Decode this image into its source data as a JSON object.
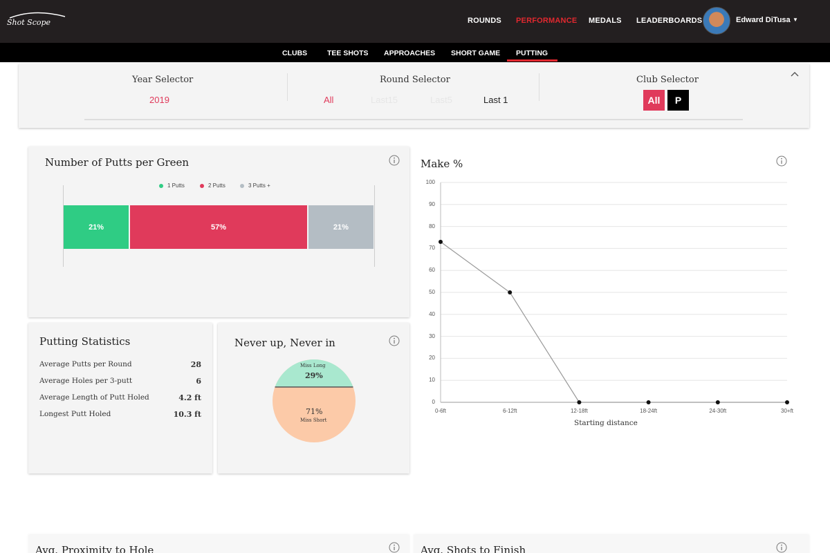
{
  "app": {
    "logo": "Shot Scope"
  },
  "topnav": {
    "items": [
      {
        "label": "ROUNDS",
        "active": false
      },
      {
        "label": "PERFORMANCE",
        "active": true
      },
      {
        "label": "MEDALS",
        "active": false
      },
      {
        "label": "LEADERBOARDS",
        "active": false
      }
    ],
    "user": {
      "name": "Edward DiTusa",
      "caret": "▼"
    }
  },
  "subnav": {
    "items": [
      "CLUBS",
      "TEE SHOTS",
      "APPROACHES",
      "SHORT GAME",
      "PUTTING"
    ],
    "active": "PUTTING"
  },
  "selectors": {
    "year": {
      "title": "Year Selector",
      "value": "2019"
    },
    "round": {
      "title": "Round Selector",
      "options": [
        "All",
        "Last15",
        "Last5",
        "Last 1"
      ],
      "selected": "All"
    },
    "club": {
      "title": "Club Selector",
      "options": [
        "All",
        "P"
      ],
      "selected": "All"
    }
  },
  "putts_per_green": {
    "title": "Number of Putts per Green",
    "legend": [
      "1 Putts",
      "2 Putts",
      "3 Putts +"
    ],
    "labels": [
      "21%",
      "57%",
      "21%"
    ]
  },
  "putting_stats": {
    "title": "Putting Statistics",
    "rows": [
      {
        "label": "Average Putts per Round",
        "value": "28"
      },
      {
        "label": "Average Holes per 3-putt",
        "value": "6"
      },
      {
        "label": "Average Length of Putt Holed",
        "value": "4.2 ft"
      },
      {
        "label": "Longest Putt Holed",
        "value": "10.3 ft"
      }
    ]
  },
  "never_up": {
    "title": "Never up, Never in",
    "slices": [
      {
        "label": "Miss Long",
        "pct": "29%"
      },
      {
        "label": "Miss Short",
        "pct": "71%"
      }
    ]
  },
  "make_pct": {
    "title": "Make %",
    "xlabel": "Starting distance"
  },
  "bottom_cards": {
    "left_title": "Avg. Proximity to Hole",
    "right_title": "Avg. Shots to Finish"
  },
  "colors": {
    "brand_red": "#e2282f",
    "one_putt": "#2fcc84",
    "two_putt": "#e03a5b",
    "three_putt": "#b4bdc4",
    "miss_long": "#a9e8cf",
    "miss_short": "#fccaa8"
  },
  "chart_data": [
    {
      "type": "bar",
      "title": "Number of Putts per Green",
      "orientation": "horizontal-stacked",
      "series": [
        {
          "name": "1 Putts",
          "values": [
            21
          ]
        },
        {
          "name": "2 Putts",
          "values": [
            57
          ]
        },
        {
          "name": "3 Putts +",
          "values": [
            21
          ]
        }
      ],
      "legend": "top"
    },
    {
      "type": "pie",
      "title": "Never up, Never in",
      "categories": [
        "Miss Long",
        "Miss Short"
      ],
      "values": [
        29,
        71
      ]
    },
    {
      "type": "line",
      "title": "Make %",
      "x": [
        "0-6ft",
        "6-12ft",
        "12-18ft",
        "18-24ft",
        "24-30ft",
        "30+ft"
      ],
      "series": [
        {
          "values": [
            73,
            50,
            0,
            0,
            0,
            0
          ]
        }
      ],
      "xlabel": "Starting distance",
      "ylabel": "",
      "ylim": [
        0,
        100
      ],
      "yticks": [
        0,
        10,
        20,
        30,
        40,
        50,
        60,
        70,
        80,
        90,
        100
      ],
      "grid": true
    }
  ]
}
